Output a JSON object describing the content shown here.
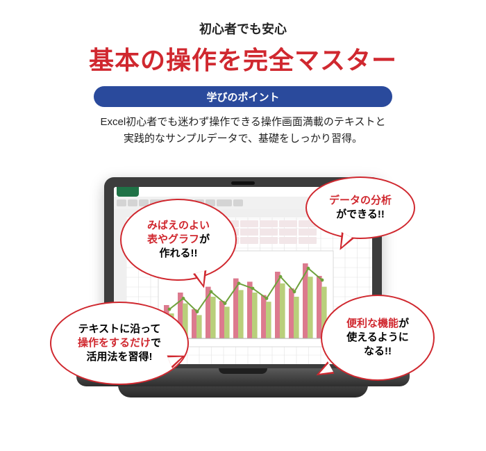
{
  "colors": {
    "accent": "#d0282f",
    "pill_bg": "#2a4a9c",
    "excel_green": "#1f7246",
    "black": "#222222",
    "bar_pink": "#dc7a8e",
    "bar_green": "#b9cf7b",
    "line_green": "#6fa23c"
  },
  "header": {
    "sub": "初心者でも安心",
    "title": "基本の操作を完全マスター",
    "pill": "学びのポイント",
    "desc1": "Excel初心者でも迷わず操作できる操作画面満載のテキストと",
    "desc2": "実践的なサンプルデータで、基礎をしっかり習得。"
  },
  "bubbles": {
    "b1": {
      "l1": "みばえのよい",
      "l2": "表やグラフ",
      "l3": "が",
      "l4": "作れる!!"
    },
    "b2": {
      "l1": "データの分析",
      "l2": "ができる!!"
    },
    "b3": {
      "l1": "テキストに沿って",
      "l2": "操作をするだけ",
      "l3": "で",
      "l4": "活用法を習得!"
    },
    "b4": {
      "l1": "便利な機能",
      "l2": "が",
      "l3": "使えるように",
      "l4": "なる!!"
    }
  },
  "chart": {
    "bars_pink": [
      40,
      55,
      35,
      62,
      45,
      72,
      68,
      52,
      80,
      60,
      90,
      75
    ],
    "bars_green": [
      30,
      42,
      28,
      50,
      38,
      58,
      55,
      44,
      66,
      50,
      74,
      62
    ],
    "line": [
      35,
      48,
      32,
      56,
      42,
      66,
      60,
      48,
      74,
      56,
      84,
      70
    ]
  }
}
